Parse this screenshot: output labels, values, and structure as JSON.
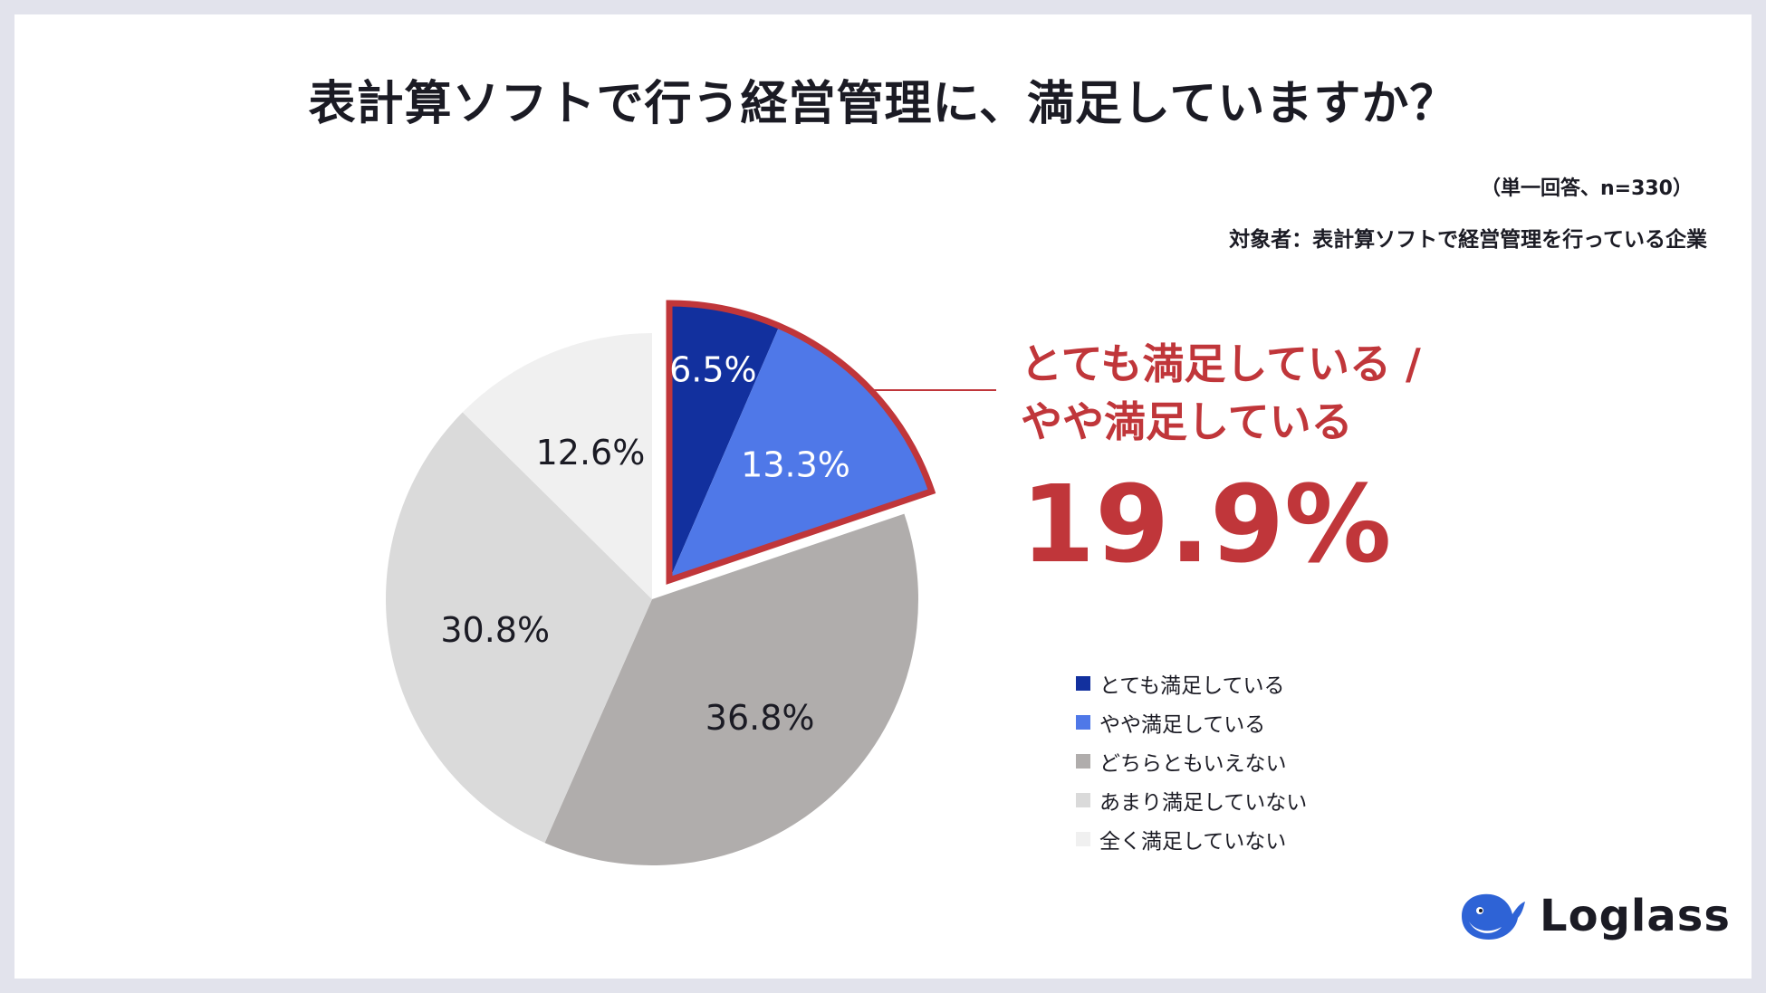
{
  "title": "表計算ソフトで行う経営管理に、満足していますか？",
  "meta": {
    "response": "（単一回答、n=330）",
    "target": "対象者：表計算ソフトで経営管理を行っている企業"
  },
  "chart_data": {
    "type": "pie",
    "title": "表計算ソフトで行う経営管理に、満足していますか？",
    "start": "12 o'clock, clockwise",
    "slices": [
      {
        "label": "とても満足している",
        "value": 6.5,
        "display": "6.5%",
        "color": "#12309e",
        "text_color": "#ffffff",
        "highlight": true
      },
      {
        "label": "やや満足している",
        "value": 13.3,
        "display": "13.3%",
        "color": "#4f78e8",
        "text_color": "#ffffff",
        "highlight": true
      },
      {
        "label": "どちらともいえない",
        "value": 36.8,
        "display": "36.8%",
        "color": "#b0adac",
        "text_color": "#1b1b24",
        "highlight": false
      },
      {
        "label": "あまり満足していない",
        "value": 30.8,
        "display": "30.8%",
        "color": "#dadada",
        "text_color": "#1b1b24",
        "highlight": false
      },
      {
        "label": "全く満足していない",
        "value": 12.6,
        "display": "12.6%",
        "color": "#f0f0f0",
        "text_color": "#1b1b24",
        "highlight": false
      }
    ],
    "highlight_color": "#c0363a"
  },
  "callout": {
    "line1": "とても満足している /",
    "line2": "やや満足している",
    "value": "19.9%"
  },
  "logo": {
    "name": "Loglass",
    "icon": "whale-icon",
    "color": "#2e63d6"
  }
}
